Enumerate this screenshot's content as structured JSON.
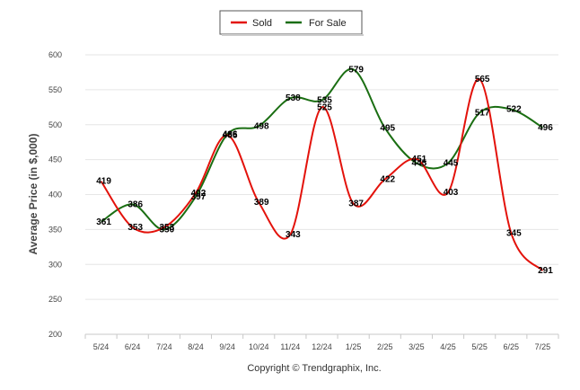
{
  "chart_data": {
    "type": "line",
    "categories": [
      "5/24",
      "6/24",
      "7/24",
      "8/24",
      "9/24",
      "10/24",
      "11/24",
      "12/24",
      "1/25",
      "2/25",
      "3/25",
      "4/25",
      "5/25",
      "6/25",
      "7/25"
    ],
    "series": [
      {
        "name": "Sold",
        "color": "#e3120b",
        "values": [
          419,
          353,
          353,
          402,
          485,
          389,
          343,
          525,
          387,
          422,
          451,
          403,
          565,
          345,
          291
        ]
      },
      {
        "name": "For Sale",
        "color": "#1a6e12",
        "values": [
          361,
          386,
          350,
          397,
          486,
          498,
          538,
          535,
          579,
          495,
          445,
          445,
          517,
          522,
          496
        ]
      }
    ],
    "ylabel": "Average Price (in $,000)",
    "xlabel": "",
    "ylim": [
      200,
      600
    ],
    "yticks": [
      200,
      250,
      300,
      350,
      400,
      450,
      500,
      550,
      600
    ],
    "grid": true,
    "legend_position": "top-center",
    "footer": "Copyright © Trendgraphix, Inc."
  }
}
